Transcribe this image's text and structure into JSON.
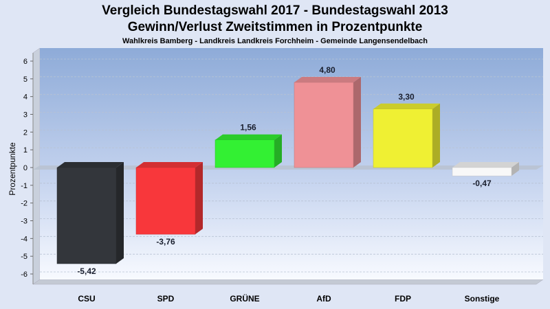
{
  "chart_data": {
    "type": "bar",
    "title": "Vergleich Bundestagswahl 2017 - Bundestagswahl 2013",
    "title2": "Gewinn/Verlust Zweitstimmen in Prozentpunkte",
    "subtitle": "Wahlkreis Bamberg - Landkreis Landkreis Forchheim - Gemeinde Langensendelbach",
    "xlabel": "",
    "ylabel": "Prozentpunkte",
    "ylim": [
      -6.6,
      6.6
    ],
    "yticks": [
      6,
      5,
      4,
      3,
      2,
      1,
      0,
      -1,
      -2,
      -3,
      -4,
      -5,
      -6
    ],
    "grid": true,
    "categories": [
      "CSU",
      "SPD",
      "GRÜNE",
      "AfD",
      "FDP",
      "Sonstige"
    ],
    "values": [
      -5.42,
      -3.76,
      1.56,
      4.8,
      3.3,
      -0.47
    ],
    "labels": [
      "-5,42",
      "-3,76",
      "1,56",
      "4,80",
      "3,30",
      "-0,47"
    ],
    "colors": [
      "#33363b",
      "#f8373b",
      "#33f033",
      "#ef9196",
      "#eff033",
      "#f8f8f8"
    ]
  }
}
